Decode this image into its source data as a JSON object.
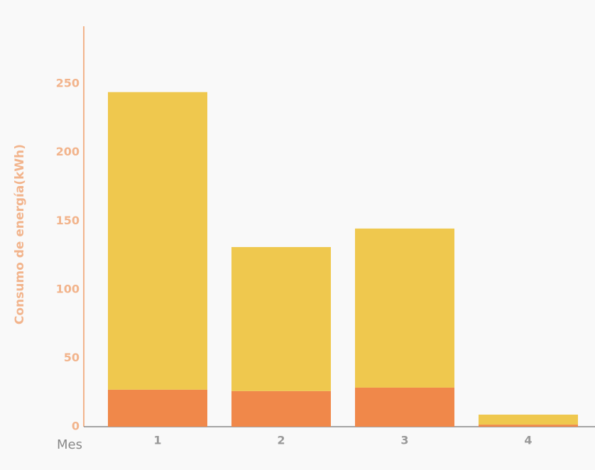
{
  "chart_data": {
    "type": "stacked_bar",
    "x_label": "Mes",
    "y_label": "Consumo de energía(kWh)",
    "categories": [
      "1",
      "2",
      "3",
      "4"
    ],
    "series": [
      {
        "color": "#f0884a",
        "values": [
          27,
          26,
          28.5,
          1.5
        ]
      },
      {
        "color": "#efc84e",
        "values": [
          217,
          105,
          116,
          7.3
        ]
      }
    ],
    "ylim": [
      0,
      292
    ],
    "yticks": [
      0,
      50,
      100,
      150,
      200,
      250
    ],
    "grid": false
  }
}
